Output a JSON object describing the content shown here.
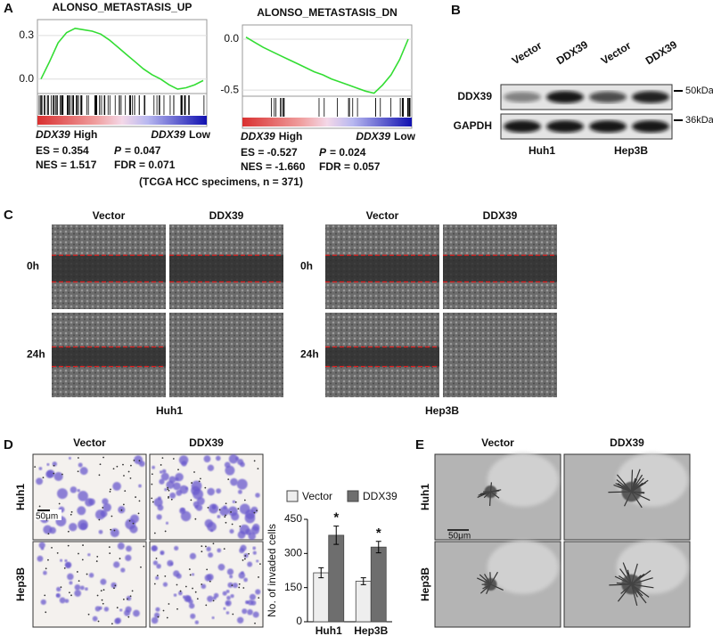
{
  "figure": {
    "A": {
      "label": "A",
      "caption": "(TCGA HCC specimens, n = 371)"
    },
    "B": {
      "label": "B",
      "lanes": [
        "Vector",
        "DDX39",
        "Vector",
        "DDX39"
      ],
      "rows": [
        "DDX39",
        "GAPDH"
      ],
      "markers": [
        "50kDa",
        "36kDa"
      ],
      "groups": [
        "Huh1",
        "Hep3B"
      ]
    },
    "C": {
      "label": "C",
      "columns": [
        "Vector",
        "DDX39",
        "Vector",
        "DDX39"
      ],
      "rows": [
        "0h",
        "24h"
      ],
      "groups": [
        "Huh1",
        "Hep3B"
      ]
    },
    "D": {
      "label": "D",
      "columns": [
        "Vector",
        "DDX39"
      ],
      "rows": [
        "Huh1",
        "Hep3B"
      ],
      "scale": "50μm"
    },
    "E": {
      "label": "E",
      "columns": [
        "Vector",
        "DDX39"
      ],
      "rows": [
        "Huh1",
        "Hep3B"
      ],
      "scale": "50μm"
    }
  },
  "chart_data": [
    {
      "type": "line",
      "title": "ALONSO_METASTASIS_UP",
      "color": "#33dd33",
      "values": [
        0,
        0.12,
        0.25,
        0.32,
        0.35,
        0.34,
        0.33,
        0.31,
        0.27,
        0.22,
        0.17,
        0.12,
        0.07,
        0.03,
        0.0,
        -0.04,
        -0.07,
        -0.06,
        -0.04,
        -0.01
      ],
      "ylim": [
        -0.1,
        0.41
      ],
      "yticks": [
        0.3,
        {
          "value": 0,
          "label": "0.0"
        }
      ],
      "gene": "DDX39",
      "high_label": "High",
      "low_label": "Low",
      "stats": [
        "ES = 0.354",
        "NES = 1.517"
      ],
      "p_symbol": "P",
      "p_text": "= 0.047",
      "fdr": "FDR = 0.071"
    },
    {
      "type": "line",
      "title": "ALONSO_METASTASIS_DN",
      "color": "#33dd33",
      "values": [
        0.02,
        -0.03,
        -0.08,
        -0.12,
        -0.16,
        -0.2,
        -0.24,
        -0.28,
        -0.32,
        -0.35,
        -0.39,
        -0.42,
        -0.45,
        -0.48,
        -0.51,
        -0.53,
        -0.45,
        -0.35,
        -0.2,
        0.0
      ],
      "ylim": [
        -0.56,
        0.14
      ],
      "yticks": [
        {
          "value": 0,
          "label": "0.0"
        },
        -0.5
      ],
      "gene": "DDX39",
      "high_label": "High",
      "low_label": "Low",
      "stats": [
        "ES = -0.527",
        "NES = -1.660"
      ],
      "p_symbol": "P",
      "p_text": "= 0.024",
      "fdr": "FDR = 0.057"
    },
    {
      "type": "bar",
      "y_label": "No. of invaded cells",
      "categories": [
        "Huh1",
        "Hep3B"
      ],
      "series": [
        {
          "name": "Vector",
          "color": "#eeeeee",
          "values": [
            215,
            178
          ],
          "errors": [
            22,
            15
          ]
        },
        {
          "name": "DDX39",
          "color": "#6e6e6e",
          "values": [
            380,
            328
          ],
          "errors": [
            40,
            25
          ],
          "annotations": [
            "*",
            "*"
          ]
        }
      ],
      "ylim": [
        0,
        450
      ],
      "yticks": [
        0,
        150,
        300,
        450
      ]
    }
  ]
}
